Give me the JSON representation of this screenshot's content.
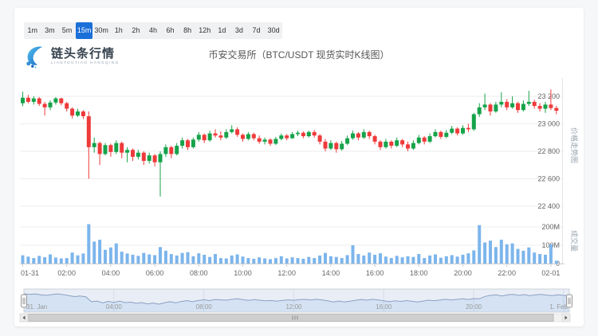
{
  "toolbar": {
    "timeframes": [
      "1m",
      "3m",
      "5m",
      "15m",
      "30m",
      "1h",
      "2h",
      "4h",
      "6h",
      "8h",
      "12h",
      "1d",
      "3d",
      "7d",
      "30d"
    ],
    "active": "15m"
  },
  "header": {
    "logo_text": "链头条行情",
    "logo_subtext": "LIANTOUTIAO HANGQING",
    "title": "币安交易所（BTC/USDT 现货实时K线图）"
  },
  "chart_data": {
    "type": "candlestick",
    "title": "币安交易所（BTC/USDT 现货实时K线图）",
    "interval": "15m",
    "price_axis": {
      "title": "价格走势图",
      "ticks": [
        {
          "label": "23 200",
          "value": 23200
        },
        {
          "label": "23 000",
          "value": 23000
        },
        {
          "label": "22 800",
          "value": 22800
        },
        {
          "label": "22 600",
          "value": 22600
        },
        {
          "label": "22 400",
          "value": 22400
        }
      ],
      "range": [
        22350,
        23330
      ]
    },
    "volume_axis": {
      "title": "成交量",
      "ticks": [
        {
          "label": "200M",
          "value": 200
        },
        {
          "label": "100M",
          "value": 100
        },
        {
          "label": "0",
          "value": 0
        }
      ],
      "unit": "M"
    },
    "x_axis": {
      "labels": [
        "01-31",
        "02:00",
        "04:00",
        "06:00",
        "08:00",
        "10:00",
        "12:00",
        "14:00",
        "16:00",
        "18:00",
        "20:00",
        "22:00",
        "02-01"
      ],
      "label_indices": [
        0,
        8,
        16,
        24,
        32,
        40,
        48,
        56,
        64,
        72,
        80,
        88,
        96
      ]
    },
    "colors": {
      "up": "#16a34a",
      "down": "#ef3a3a",
      "volume": "#7cb5ec",
      "grid": "#ededed",
      "axis": "#cccccc",
      "label": "#666666",
      "nav_line": "#93a4c5",
      "nav_fill": "rgba(124,181,236,0.18)",
      "nav_mask": "rgba(102,133,194,0.14)",
      "accent": "#1b6fd8"
    },
    "navigator": {
      "labels": [
        "31. Jan",
        "04:00",
        "08:00",
        "12:00",
        "16:00",
        "20:00",
        "1. Feb"
      ],
      "label_indices": [
        0,
        16,
        32,
        48,
        64,
        80,
        96
      ]
    },
    "candles_format": [
      "open",
      "high",
      "low",
      "close",
      "volume_M"
    ],
    "candles": [
      [
        23150,
        23235,
        23130,
        23190,
        45
      ],
      [
        23190,
        23210,
        23150,
        23160,
        38
      ],
      [
        23160,
        23200,
        23140,
        23185,
        30
      ],
      [
        23185,
        23195,
        23130,
        23145,
        42
      ],
      [
        23145,
        23160,
        23060,
        23120,
        35
      ],
      [
        23120,
        23170,
        23100,
        23155,
        50
      ],
      [
        23155,
        23195,
        23140,
        23185,
        33
      ],
      [
        23185,
        23190,
        23135,
        23150,
        28
      ],
      [
        23150,
        23160,
        23090,
        23110,
        30
      ],
      [
        23110,
        23120,
        23040,
        23060,
        60
      ],
      [
        23060,
        23110,
        23050,
        23090,
        45
      ],
      [
        23090,
        23100,
        23035,
        23055,
        55
      ],
      [
        23055,
        23090,
        22600,
        22830,
        215
      ],
      [
        22830,
        22900,
        22790,
        22860,
        120
      ],
      [
        22860,
        22870,
        22700,
        22780,
        130
      ],
      [
        22780,
        22860,
        22770,
        22845,
        75
      ],
      [
        22845,
        22855,
        22760,
        22795,
        88
      ],
      [
        22795,
        22880,
        22780,
        22860,
        110
      ],
      [
        22860,
        22870,
        22750,
        22790,
        65
      ],
      [
        22790,
        22830,
        22720,
        22810,
        55
      ],
      [
        22810,
        22820,
        22730,
        22760,
        48
      ],
      [
        22760,
        22810,
        22740,
        22790,
        42
      ],
      [
        22790,
        22800,
        22700,
        22730,
        58
      ],
      [
        22730,
        22790,
        22710,
        22770,
        50
      ],
      [
        22770,
        22780,
        22690,
        22720,
        46
      ],
      [
        22720,
        22800,
        22470,
        22780,
        90
      ],
      [
        22780,
        22850,
        22760,
        22830,
        70
      ],
      [
        22830,
        22840,
        22750,
        22780,
        52
      ],
      [
        22780,
        22860,
        22770,
        22840,
        44
      ],
      [
        22840,
        22900,
        22820,
        22880,
        58
      ],
      [
        22880,
        22890,
        22810,
        22830,
        62
      ],
      [
        22830,
        22900,
        22820,
        22885,
        40
      ],
      [
        22885,
        22940,
        22870,
        22920,
        56
      ],
      [
        22920,
        22930,
        22860,
        22880,
        48
      ],
      [
        22880,
        22950,
        22870,
        22930,
        36
      ],
      [
        22930,
        22960,
        22900,
        22915,
        52
      ],
      [
        22915,
        22945,
        22880,
        22900,
        30
      ],
      [
        22900,
        22960,
        22890,
        22940,
        28
      ],
      [
        22940,
        22990,
        22930,
        22960,
        44
      ],
      [
        22960,
        22975,
        22905,
        22920,
        50
      ],
      [
        22920,
        22930,
        22870,
        22890,
        38
      ],
      [
        22890,
        22940,
        22880,
        22925,
        30
      ],
      [
        22925,
        22935,
        22880,
        22895,
        26
      ],
      [
        22895,
        22915,
        22855,
        22870,
        34
      ],
      [
        22870,
        22900,
        22850,
        22885,
        28
      ],
      [
        22885,
        22895,
        22840,
        22855,
        24
      ],
      [
        22855,
        22905,
        22845,
        22890,
        30
      ],
      [
        22890,
        22930,
        22880,
        22915,
        40
      ],
      [
        22915,
        22925,
        22880,
        22895,
        28
      ],
      [
        22895,
        22940,
        22890,
        22925,
        34
      ],
      [
        22925,
        22950,
        22910,
        22935,
        30
      ],
      [
        22935,
        22945,
        22895,
        22910,
        26
      ],
      [
        22910,
        22950,
        22900,
        22940,
        36
      ],
      [
        22940,
        22955,
        22900,
        22915,
        30
      ],
      [
        22915,
        22925,
        22850,
        22870,
        44
      ],
      [
        22870,
        22890,
        22800,
        22820,
        58
      ],
      [
        22820,
        22880,
        22810,
        22860,
        40
      ],
      [
        22860,
        22870,
        22790,
        22815,
        36
      ],
      [
        22815,
        22875,
        22805,
        22855,
        30
      ],
      [
        22855,
        22915,
        22845,
        22895,
        46
      ],
      [
        22895,
        22950,
        22885,
        22930,
        100
      ],
      [
        22930,
        22940,
        22880,
        22900,
        52
      ],
      [
        22900,
        22960,
        22890,
        22940,
        44
      ],
      [
        22940,
        22950,
        22890,
        22910,
        60
      ],
      [
        22910,
        22920,
        22850,
        22870,
        48
      ],
      [
        22870,
        22880,
        22810,
        22830,
        56
      ],
      [
        22830,
        22890,
        22820,
        22870,
        38
      ],
      [
        22870,
        22880,
        22820,
        22840,
        30
      ],
      [
        22840,
        22900,
        22830,
        22880,
        42
      ],
      [
        22880,
        22890,
        22830,
        22850,
        34
      ],
      [
        22850,
        22870,
        22800,
        22820,
        40
      ],
      [
        22820,
        22880,
        22810,
        22860,
        36
      ],
      [
        22860,
        22920,
        22850,
        22900,
        52
      ],
      [
        22900,
        22910,
        22850,
        22870,
        30
      ],
      [
        22870,
        22930,
        22860,
        22910,
        44
      ],
      [
        22910,
        22960,
        22900,
        22940,
        50
      ],
      [
        22940,
        22950,
        22890,
        22905,
        32
      ],
      [
        22905,
        22955,
        22895,
        22935,
        40
      ],
      [
        22935,
        22985,
        22925,
        22965,
        46
      ],
      [
        22965,
        22975,
        22915,
        22930,
        38
      ],
      [
        22930,
        22990,
        22920,
        22970,
        48
      ],
      [
        22970,
        23000,
        22940,
        22960,
        56
      ],
      [
        22960,
        23080,
        22950,
        23070,
        72
      ],
      [
        23070,
        23150,
        23050,
        23120,
        210
      ],
      [
        23120,
        23220,
        23100,
        23140,
        115
      ],
      [
        23140,
        23150,
        23060,
        23090,
        125
      ],
      [
        23090,
        23160,
        23080,
        23140,
        90
      ],
      [
        23140,
        23230,
        23120,
        23160,
        130
      ],
      [
        23160,
        23180,
        23100,
        23120,
        105
      ],
      [
        23120,
        23200,
        23110,
        23150,
        110
      ],
      [
        23150,
        23160,
        23080,
        23100,
        80
      ],
      [
        23100,
        23170,
        23090,
        23145,
        70
      ],
      [
        23145,
        23240,
        23130,
        23160,
        88
      ],
      [
        23160,
        23175,
        23110,
        23130,
        60
      ],
      [
        23130,
        23150,
        23090,
        23110,
        52
      ],
      [
        23110,
        23160,
        23080,
        23140,
        48
      ],
      [
        23140,
        23250,
        23100,
        23115,
        105
      ],
      [
        23115,
        23130,
        23070,
        23095,
        15
      ]
    ]
  }
}
